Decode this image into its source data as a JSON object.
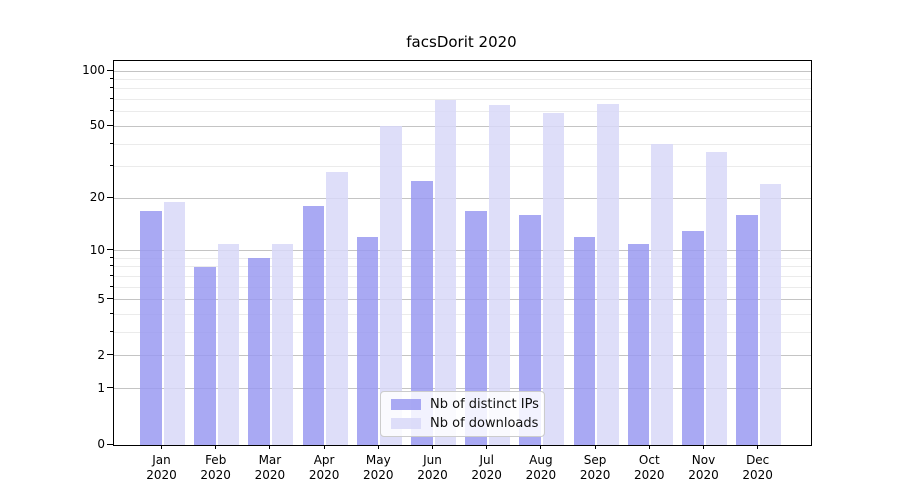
{
  "title": "facsDorit 2020",
  "chart_data": {
    "type": "bar",
    "title": "facsDorit 2020",
    "categories": [
      "Jan 2020",
      "Feb 2020",
      "Mar 2020",
      "Apr 2020",
      "May 2020",
      "Jun 2020",
      "Jul 2020",
      "Aug 2020",
      "Sep 2020",
      "Oct 2020",
      "Nov 2020",
      "Dec 2020"
    ],
    "series": [
      {
        "name": "Nb of distinct IPs",
        "color": "#9a9af1",
        "values": [
          17,
          8,
          9,
          18,
          12,
          25,
          17,
          16,
          12,
          11,
          13,
          16
        ]
      },
      {
        "name": "Nb of downloads",
        "color": "#d8d8f8",
        "values": [
          19,
          11,
          11,
          28,
          50,
          70,
          65,
          59,
          66,
          40,
          36,
          24
        ]
      }
    ],
    "bar_alpha": 0.85,
    "yscale": "log1p",
    "ylim": [
      0,
      113
    ],
    "yticks": [
      0,
      1,
      2,
      5,
      10,
      20,
      50,
      100
    ],
    "yticks_minor": [
      3,
      4,
      6,
      7,
      8,
      9,
      30,
      40,
      60,
      70,
      80,
      90
    ],
    "xlabel": "",
    "ylabel": "",
    "grid": true,
    "grid_major_color": "#c4c4c4",
    "grid_minor_color": "#ebebeb",
    "axis_color": "#000000",
    "legend_position": "inside-bottom-center"
  }
}
